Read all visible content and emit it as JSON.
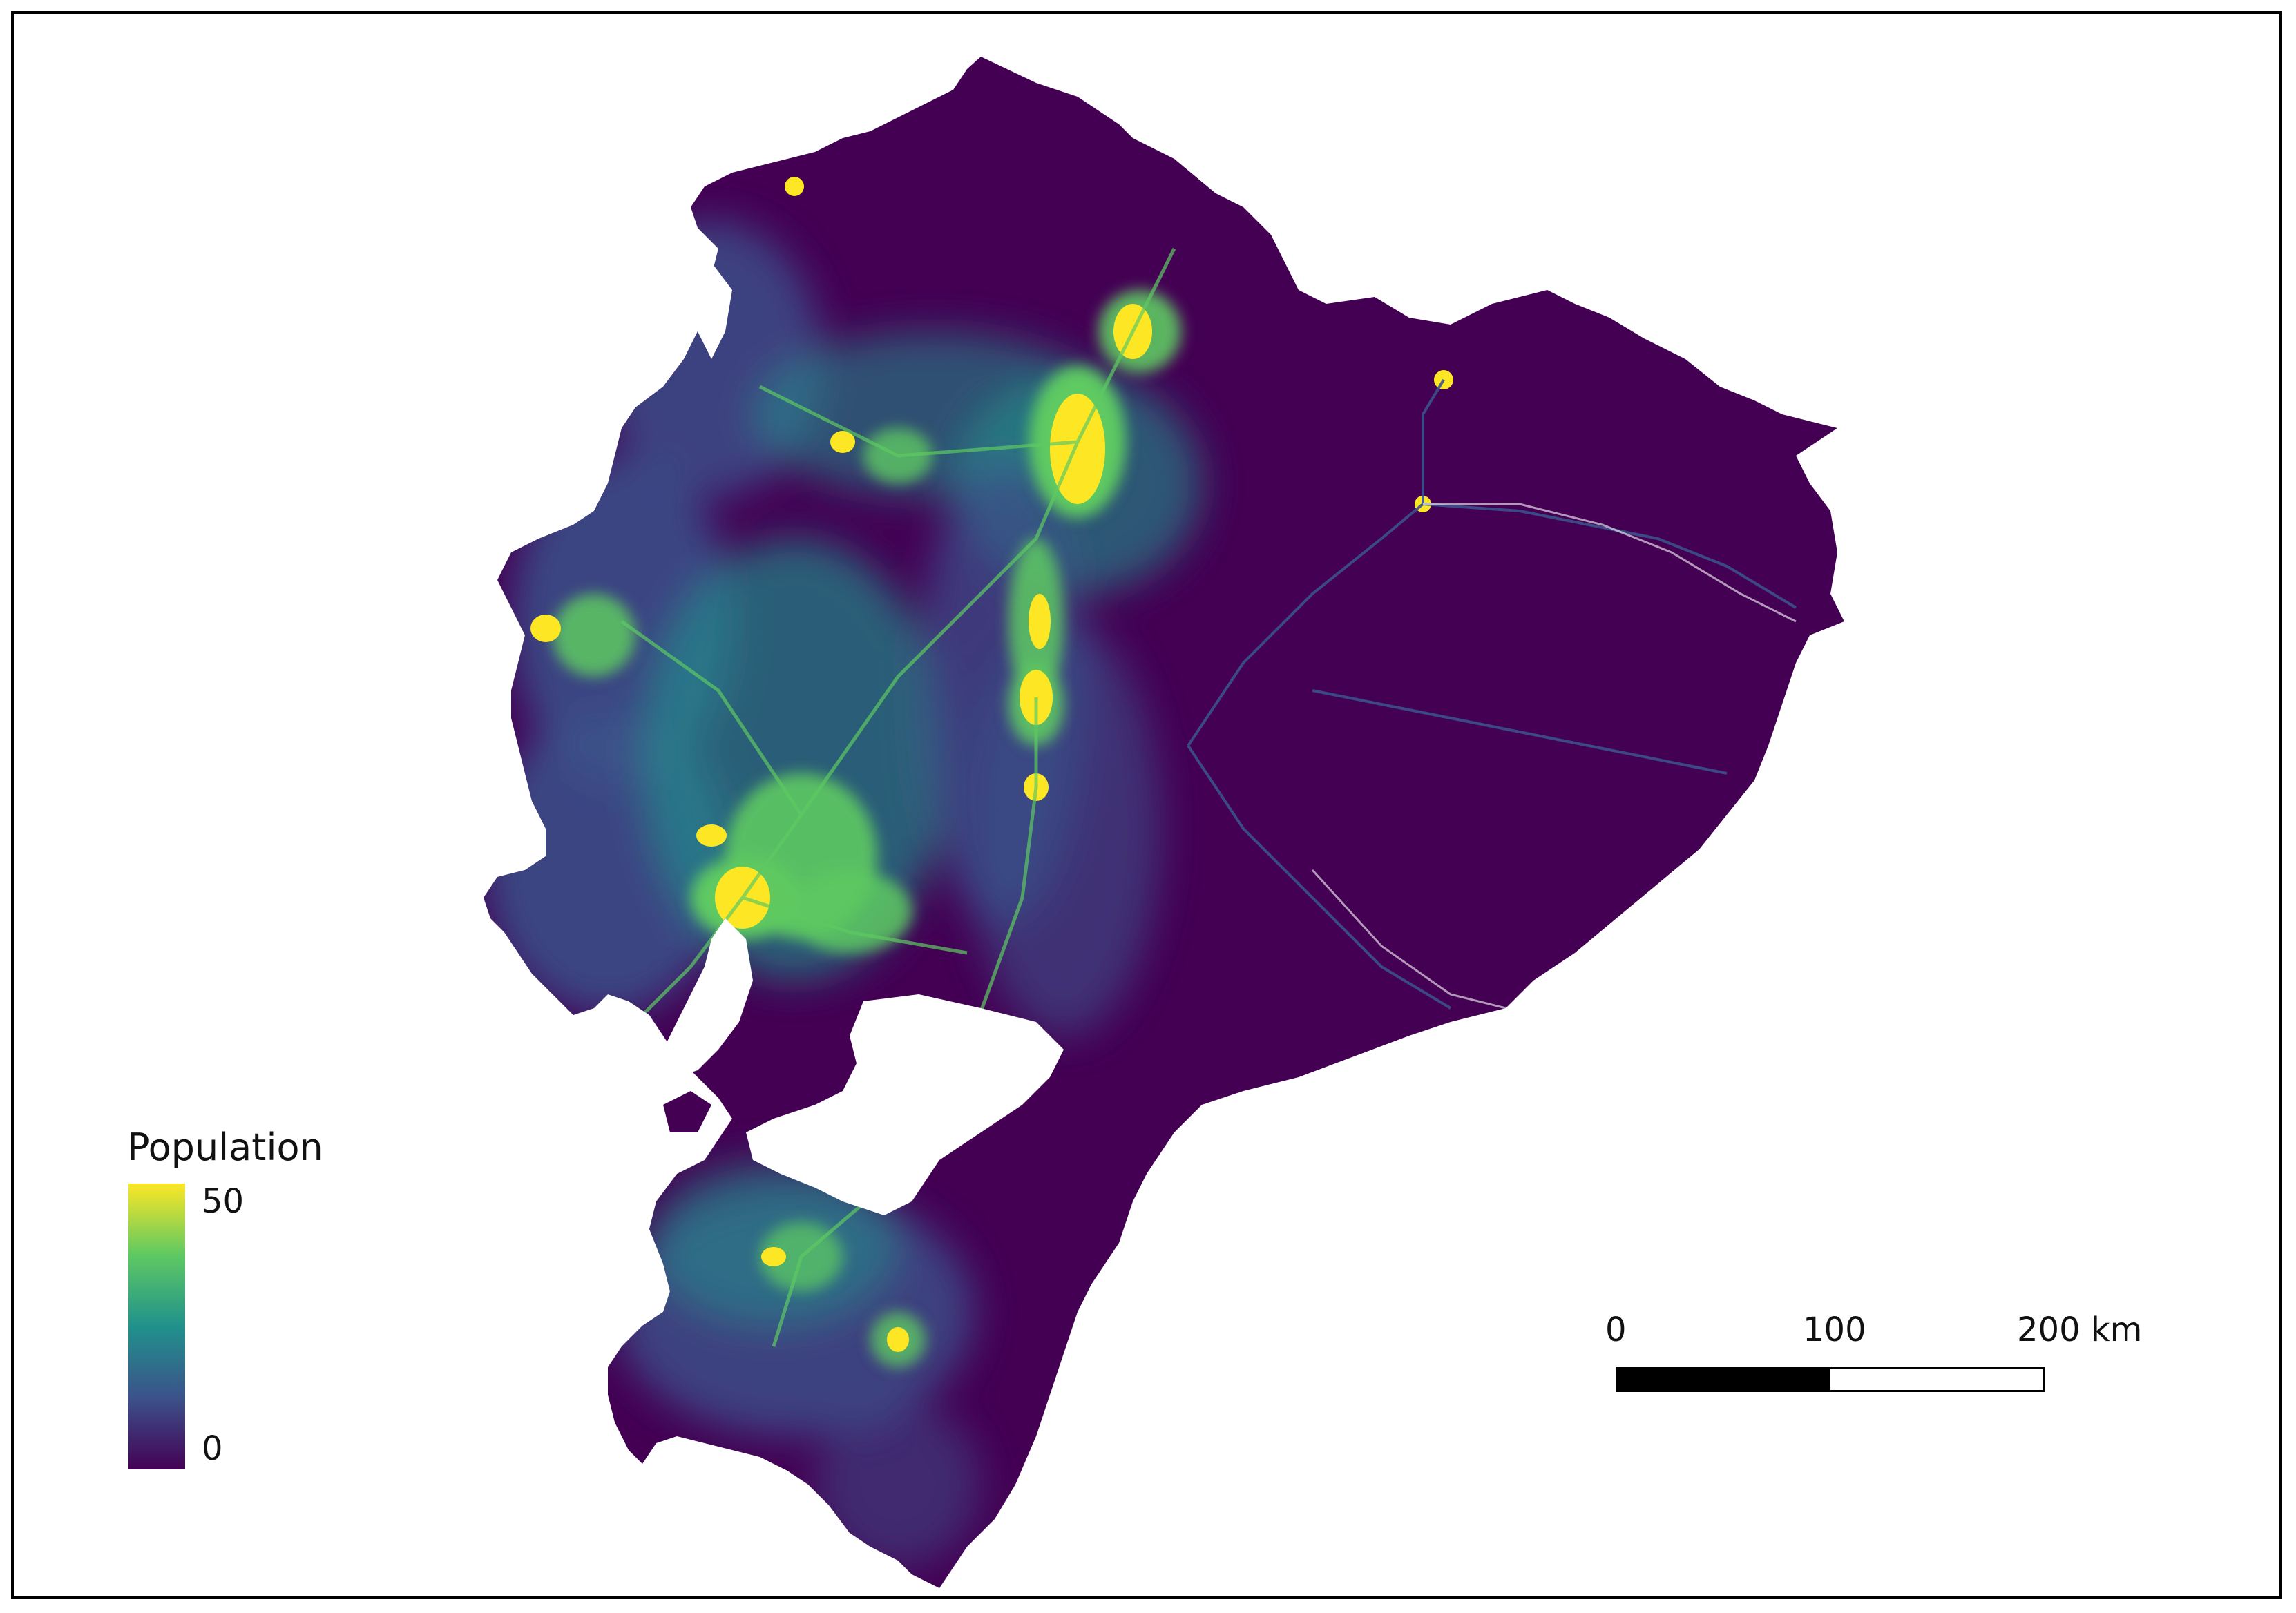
{
  "legend": {
    "title": "Population",
    "max_label": "50",
    "min_label": "0",
    "colormap": [
      "#440154",
      "#3b528b",
      "#21918c",
      "#5ec962",
      "#fde725"
    ]
  },
  "scale_bar": {
    "labels": [
      "0",
      "100",
      "200 km"
    ]
  },
  "map": {
    "region": "Ecuador",
    "variable": "population density raster",
    "colors": {
      "low": "#440154",
      "mid": "#3b528b",
      "teal": "#21918c",
      "green": "#5ec962",
      "high": "#fde725",
      "water": "#ffffff"
    }
  }
}
